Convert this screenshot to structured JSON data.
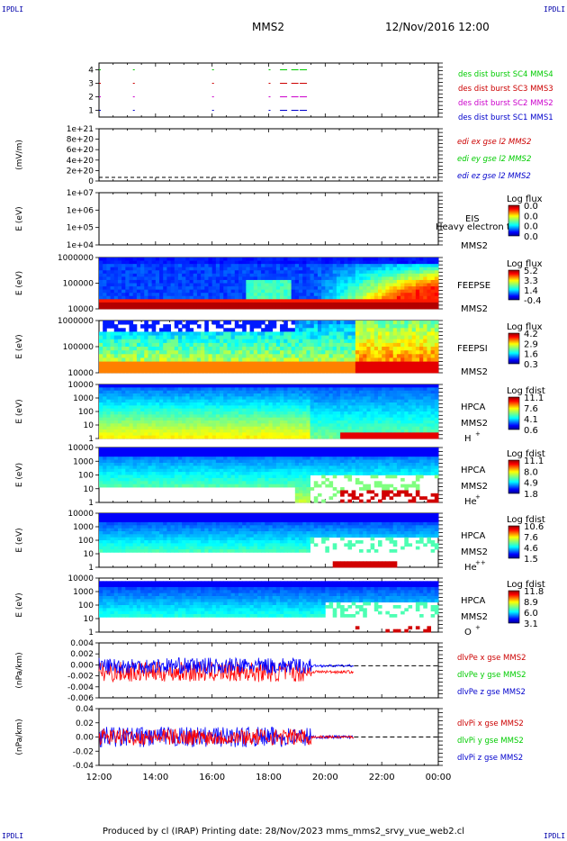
{
  "corners": {
    "tl": "IPDLI",
    "tr": "IPDLI",
    "bl": "IPDLI",
    "br": "IPDLI"
  },
  "header": {
    "spacecraft": "MMS2",
    "datetime": "12/Nov/2016 12:00"
  },
  "footer": "Produced by cl (IRAP)   Printing date: 28/Nov/2023   mms_mms2_srvy_vue_web2.cl",
  "colors": {
    "mms1": "#0000cc",
    "mms2": "#cc00cc",
    "mms3": "#cc0000",
    "mms4": "#00cc00",
    "x": "#ff0000",
    "y": "#00cc00",
    "z": "#0000ff"
  },
  "chart_data": [
    {
      "id": "burst",
      "type": "scatter",
      "yticks": [
        "1",
        "2",
        "3",
        "4"
      ],
      "ylim": [
        0.5,
        4.5
      ],
      "series": [
        {
          "name": "des dist burst SC1 MMS1",
          "color": "#0000cc",
          "y": 1,
          "x": [
            12.0,
            13.2,
            16.0,
            18.0,
            18.4,
            18.8,
            19.1
          ]
        },
        {
          "name": "des dist burst SC2 MMS2",
          "color": "#cc00cc",
          "y": 2,
          "x": [
            12.0,
            13.2,
            16.0,
            18.0,
            18.4,
            18.8,
            19.1
          ]
        },
        {
          "name": "des dist burst SC3 MMS3",
          "color": "#cc0000",
          "y": 3,
          "x": [
            12.0,
            13.2,
            16.0,
            18.0,
            18.4,
            18.8,
            19.1
          ]
        },
        {
          "name": "des dist burst SC4 MMS4",
          "color": "#00cc00",
          "y": 4,
          "x": [
            12.0,
            13.2,
            16.0,
            18.0,
            18.4,
            18.8,
            19.1
          ]
        }
      ]
    },
    {
      "id": "edi",
      "type": "line",
      "ylabel": "(mV/m)",
      "yticks": [
        "0",
        "2e+20",
        "4e+20",
        "6e+20",
        "8e+20",
        "1e+21"
      ],
      "ylim": [
        0,
        1e+21
      ],
      "legend": [
        {
          "name": "edi ex gse l2 MMS2",
          "color": "#cc0000"
        },
        {
          "name": "edi ey gse l2 MMS2",
          "color": "#00cc00"
        },
        {
          "name": "edi ez gse l2 MMS2",
          "color": "#0000cc"
        }
      ]
    },
    {
      "id": "eis",
      "type": "heatmap",
      "ylabel": "E (eV)",
      "yticks": [
        "1e+04",
        "1e+05",
        "1e+06",
        "1e+07"
      ],
      "instrument": "EIS",
      "spacecraft": "MMS2",
      "overlay": "Heavy electron to",
      "cbar_title": "Log flux",
      "cbar_ticks": [
        "0.0",
        "0.0",
        "0.0",
        "0.0"
      ]
    },
    {
      "id": "feepse",
      "type": "heatmap",
      "ylabel": "E (eV)",
      "yticks": [
        "10000",
        "100000",
        "1000000"
      ],
      "instrument": "FEEPSE",
      "spacecraft": "MMS2",
      "cbar_title": "Log flux",
      "cbar_ticks": [
        "5.2",
        "3.3",
        "1.4",
        "-0.4"
      ]
    },
    {
      "id": "feepsi",
      "type": "heatmap",
      "ylabel": "E (eV)",
      "yticks": [
        "10000",
        "100000",
        "1000000"
      ],
      "instrument": "FEEPSI",
      "spacecraft": "MMS2",
      "cbar_title": "Log flux",
      "cbar_ticks": [
        "4.2",
        "2.9",
        "1.6",
        "0.3"
      ]
    },
    {
      "id": "hpca_h",
      "type": "heatmap",
      "ylabel": "E (eV)",
      "yticks": [
        "1",
        "10",
        "100",
        "1000",
        "10000"
      ],
      "instrument": "HPCA",
      "spacecraft": "MMS2",
      "species": "H",
      "charge": "+",
      "cbar_title": "Log fdist",
      "cbar_ticks": [
        "11.1",
        "7.6",
        "4.1",
        "0.6"
      ]
    },
    {
      "id": "hpca_he1",
      "type": "heatmap",
      "ylabel": "E (eV)",
      "yticks": [
        "1",
        "10",
        "100",
        "1000",
        "10000"
      ],
      "instrument": "HPCA",
      "spacecraft": "MMS2",
      "species": "He",
      "charge": "+",
      "cbar_title": "Log fdist",
      "cbar_ticks": [
        "11.1",
        "8.0",
        "4.9",
        "1.8"
      ]
    },
    {
      "id": "hpca_he2",
      "type": "heatmap",
      "ylabel": "E (eV)",
      "yticks": [
        "1",
        "10",
        "100",
        "1000",
        "10000"
      ],
      "instrument": "HPCA",
      "spacecraft": "MMS2",
      "species": "He",
      "charge": "++",
      "cbar_title": "Log fdist",
      "cbar_ticks": [
        "10.6",
        "7.6",
        "4.6",
        "1.5"
      ]
    },
    {
      "id": "hpca_o",
      "type": "heatmap",
      "ylabel": "E (eV)",
      "yticks": [
        "1",
        "10",
        "100",
        "1000",
        "10000"
      ],
      "instrument": "HPCA",
      "spacecraft": "MMS2",
      "species": "O",
      "charge": "+",
      "cbar_title": "Log fdist",
      "cbar_ticks": [
        "11.8",
        "8.9",
        "6.0",
        "3.1"
      ]
    },
    {
      "id": "dlvpe",
      "type": "line",
      "ylabel": "(nPa/km)",
      "yticks": [
        "-0.006",
        "-0.004",
        "-0.002",
        "0.000",
        "0.002",
        "0.004"
      ],
      "ylim": [
        -0.007,
        0.005
      ],
      "legend": [
        {
          "name": "dlvPe x gse MMS2",
          "color": "#cc0000"
        },
        {
          "name": "dlvPe y gse MMS2",
          "color": "#00cc00"
        },
        {
          "name": "dlvPe z gse MMS2",
          "color": "#0000cc"
        }
      ]
    },
    {
      "id": "dlvpi",
      "type": "line",
      "ylabel": "(nPa/km)",
      "yticks": [
        "-0.04",
        "-0.02",
        "0.00",
        "0.02",
        "0.04"
      ],
      "ylim": [
        -0.05,
        0.05
      ],
      "legend": [
        {
          "name": "dlvPi x gse MMS2",
          "color": "#cc0000"
        },
        {
          "name": "dlvPi y gse MMS2",
          "color": "#00cc00"
        },
        {
          "name": "dlvPi z gse MMS2",
          "color": "#0000cc"
        }
      ]
    }
  ],
  "xaxis": {
    "ticks": [
      "12:00",
      "14:00",
      "16:00",
      "18:00",
      "20:00",
      "22:00",
      "00:00"
    ],
    "range": [
      12,
      24
    ]
  }
}
